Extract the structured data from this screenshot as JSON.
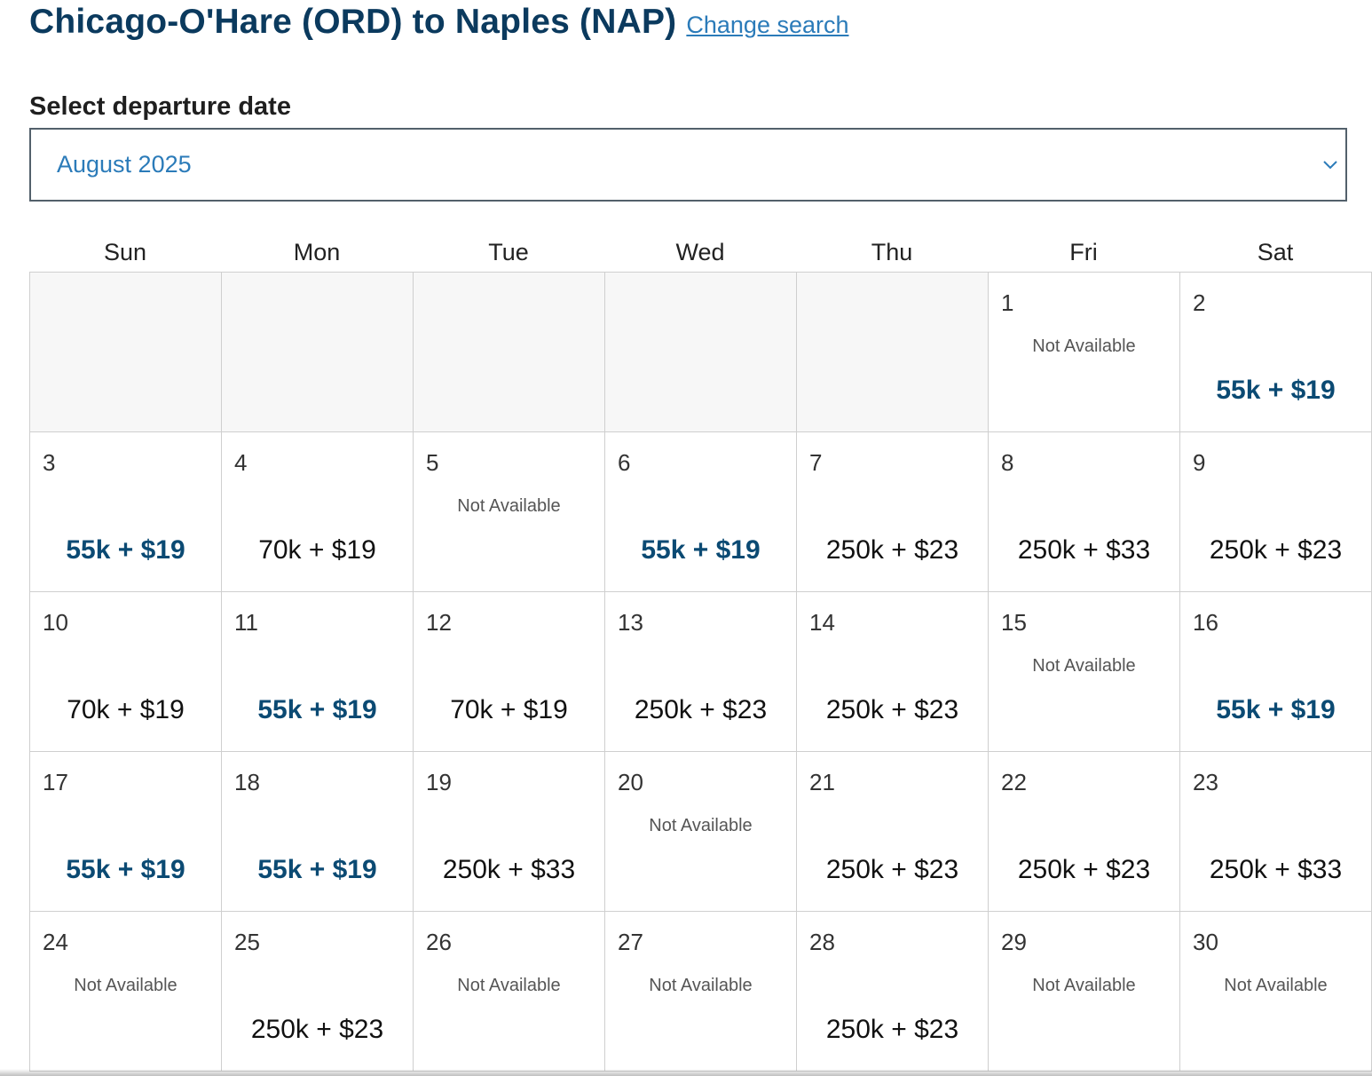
{
  "header": {
    "title": "Chicago-O'Hare (ORD) to Naples (NAP)",
    "change_search_label": "Change search"
  },
  "date_picker": {
    "label": "Select departure date",
    "selected_month": "August 2025",
    "chevron_icon": "chevron-down-icon"
  },
  "colors": {
    "title": "#0b3a5e",
    "link": "#2b7bb9",
    "lowest_fare": "#0b4a73"
  },
  "weekdays": [
    "Sun",
    "Mon",
    "Tue",
    "Wed",
    "Thu",
    "Fri",
    "Sat"
  ],
  "calendar": {
    "leading_empty_cells": 5,
    "days": [
      {
        "day": "1",
        "status": "Not Available"
      },
      {
        "day": "2",
        "price": "55k + $19",
        "lowest": true
      },
      {
        "day": "3",
        "price": "55k + $19",
        "lowest": true
      },
      {
        "day": "4",
        "price": "70k + $19",
        "lowest": false
      },
      {
        "day": "5",
        "status": "Not Available"
      },
      {
        "day": "6",
        "price": "55k + $19",
        "lowest": true
      },
      {
        "day": "7",
        "price": "250k + $23",
        "lowest": false
      },
      {
        "day": "8",
        "price": "250k + $33",
        "lowest": false
      },
      {
        "day": "9",
        "price": "250k + $23",
        "lowest": false
      },
      {
        "day": "10",
        "price": "70k + $19",
        "lowest": false
      },
      {
        "day": "11",
        "price": "55k + $19",
        "lowest": true
      },
      {
        "day": "12",
        "price": "70k + $19",
        "lowest": false
      },
      {
        "day": "13",
        "price": "250k + $23",
        "lowest": false
      },
      {
        "day": "14",
        "price": "250k + $23",
        "lowest": false
      },
      {
        "day": "15",
        "status": "Not Available"
      },
      {
        "day": "16",
        "price": "55k + $19",
        "lowest": true
      },
      {
        "day": "17",
        "price": "55k + $19",
        "lowest": true
      },
      {
        "day": "18",
        "price": "55k + $19",
        "lowest": true
      },
      {
        "day": "19",
        "price": "250k + $33",
        "lowest": false
      },
      {
        "day": "20",
        "status": "Not Available"
      },
      {
        "day": "21",
        "price": "250k + $23",
        "lowest": false
      },
      {
        "day": "22",
        "price": "250k + $23",
        "lowest": false
      },
      {
        "day": "23",
        "price": "250k + $33",
        "lowest": false
      },
      {
        "day": "24",
        "status": "Not Available"
      },
      {
        "day": "25",
        "price": "250k + $23",
        "lowest": false
      },
      {
        "day": "26",
        "status": "Not Available"
      },
      {
        "day": "27",
        "status": "Not Available"
      },
      {
        "day": "28",
        "price": "250k + $23",
        "lowest": false
      },
      {
        "day": "29",
        "status": "Not Available"
      },
      {
        "day": "30",
        "status": "Not Available"
      }
    ]
  }
}
